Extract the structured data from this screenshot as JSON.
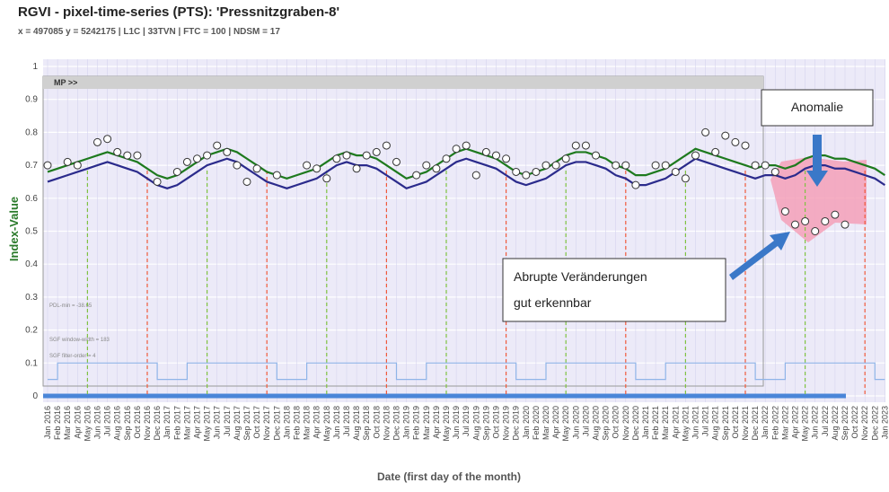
{
  "chart_data": {
    "type": "line",
    "title": "RGVI - pixel-time-series (PTS):   'Pressnitzgraben-8'",
    "subtitle": "x = 497085   y = 5242175  |  L1C  |  33TVN  |  FTC = 100  |  NDSM = 17",
    "x_label": "Date (first day of the month)",
    "y_label": "Index-Value",
    "annotations": {
      "mp": "MP >>",
      "pdl": "PDL-min = -38.65",
      "sgf_width": "SGF window-width = 183",
      "sgf_order": "SGF filter-order = 4",
      "anomaly": "Anomalie",
      "abrupt": [
        "Abrupte Veränderungen",
        "gut erkennbar"
      ]
    },
    "categories": [
      "Jan 2016",
      "Feb 2016",
      "Mar 2016",
      "Apr 2016",
      "May 2016",
      "Jun 2016",
      "Jul 2016",
      "Aug 2016",
      "Sep 2016",
      "Oct 2016",
      "Nov 2016",
      "Dec 2016",
      "Jan 2017",
      "Feb 2017",
      "Mar 2017",
      "Apr 2017",
      "May 2017",
      "Jun 2017",
      "Jul 2017",
      "Aug 2017",
      "Sep 2017",
      "Oct 2017",
      "Nov 2017",
      "Dec 2017",
      "Jan 2018",
      "Feb 2018",
      "Mar 2018",
      "Apr 2018",
      "May 2018",
      "Jun 2018",
      "Jul 2018",
      "Aug 2018",
      "Sep 2018",
      "Oct 2018",
      "Nov 2018",
      "Dec 2018",
      "Jan 2019",
      "Feb 2019",
      "Mar 2019",
      "Apr 2019",
      "May 2019",
      "Jun 2019",
      "Jul 2019",
      "Aug 2019",
      "Sep 2019",
      "Oct 2019",
      "Nov 2019",
      "Dec 2019",
      "Jan 2020",
      "Feb 2020",
      "Mar 2020",
      "Apr 2020",
      "May 2020",
      "Jun 2020",
      "Jul 2020",
      "Aug 2020",
      "Sep 2020",
      "Oct 2020",
      "Nov 2020",
      "Dec 2020",
      "Jan 2021",
      "Feb 2021",
      "Mar 2021",
      "Apr 2021",
      "May 2021",
      "Jun 2021",
      "Jul 2021",
      "Aug 2021",
      "Sep 2021",
      "Oct 2021",
      "Nov 2021",
      "Dec 2021",
      "Jan 2022",
      "Feb 2022",
      "Mar 2022",
      "Apr 2022",
      "May 2022",
      "Jun 2022",
      "Jul 2022",
      "Aug 2022",
      "Sep 2022",
      "Oct 2022",
      "Nov 2022",
      "Dec 2022",
      "Jan 2023"
    ],
    "series": [
      {
        "name": "smoothed",
        "color": "#1e7a1e",
        "values": [
          0.68,
          0.69,
          0.7,
          0.71,
          0.72,
          0.73,
          0.74,
          0.73,
          0.72,
          0.71,
          0.69,
          0.67,
          0.66,
          0.67,
          0.69,
          0.71,
          0.73,
          0.74,
          0.75,
          0.74,
          0.72,
          0.7,
          0.68,
          0.67,
          0.66,
          0.67,
          0.68,
          0.69,
          0.71,
          0.73,
          0.74,
          0.73,
          0.73,
          0.72,
          0.7,
          0.68,
          0.66,
          0.67,
          0.68,
          0.7,
          0.72,
          0.74,
          0.75,
          0.74,
          0.73,
          0.72,
          0.7,
          0.68,
          0.67,
          0.68,
          0.69,
          0.71,
          0.73,
          0.74,
          0.74,
          0.73,
          0.72,
          0.7,
          0.69,
          0.67,
          0.67,
          0.68,
          0.69,
          0.71,
          0.73,
          0.75,
          0.74,
          0.73,
          0.72,
          0.71,
          0.7,
          0.69,
          0.7,
          0.7,
          0.69,
          0.7,
          0.72,
          0.73,
          0.73,
          0.72,
          0.72,
          0.71,
          0.7,
          0.69,
          0.67
        ]
      },
      {
        "name": "lower",
        "color": "#2b2b8c",
        "values": [
          0.65,
          0.66,
          0.67,
          0.68,
          0.69,
          0.7,
          0.71,
          0.7,
          0.69,
          0.68,
          0.66,
          0.64,
          0.63,
          0.64,
          0.66,
          0.68,
          0.7,
          0.71,
          0.72,
          0.71,
          0.69,
          0.67,
          0.65,
          0.64,
          0.63,
          0.64,
          0.65,
          0.66,
          0.68,
          0.7,
          0.71,
          0.7,
          0.7,
          0.69,
          0.67,
          0.65,
          0.63,
          0.64,
          0.65,
          0.67,
          0.69,
          0.71,
          0.72,
          0.71,
          0.7,
          0.69,
          0.67,
          0.65,
          0.64,
          0.65,
          0.66,
          0.68,
          0.7,
          0.71,
          0.71,
          0.7,
          0.69,
          0.67,
          0.66,
          0.64,
          0.64,
          0.65,
          0.66,
          0.68,
          0.7,
          0.72,
          0.71,
          0.7,
          0.69,
          0.68,
          0.67,
          0.66,
          0.67,
          0.67,
          0.66,
          0.67,
          0.69,
          0.7,
          0.7,
          0.69,
          0.69,
          0.68,
          0.67,
          0.66,
          0.64
        ]
      },
      {
        "name": "observations",
        "color": "#ffffff",
        "values": [
          0.7,
          null,
          0.71,
          0.7,
          null,
          0.77,
          0.78,
          0.74,
          0.73,
          0.73,
          null,
          0.65,
          null,
          0.68,
          0.71,
          0.72,
          0.73,
          0.76,
          0.74,
          0.7,
          0.65,
          0.69,
          null,
          0.67,
          null,
          null,
          0.7,
          0.69,
          0.66,
          0.72,
          0.73,
          0.69,
          0.73,
          0.74,
          0.76,
          0.71,
          null,
          0.67,
          0.7,
          0.69,
          0.72,
          0.75,
          0.76,
          0.67,
          0.74,
          0.73,
          0.72,
          0.68,
          0.67,
          0.68,
          0.7,
          0.7,
          0.72,
          0.76,
          0.76,
          0.73,
          null,
          0.7,
          0.7,
          0.64,
          null,
          0.7,
          0.7,
          0.68,
          0.66,
          0.73,
          0.8,
          0.74,
          0.79,
          0.77,
          0.76,
          0.7,
          0.7,
          0.68,
          0.56,
          0.52,
          0.53,
          0.5,
          0.53,
          0.55,
          0.52,
          null,
          null,
          null,
          null
        ]
      },
      {
        "name": "mask",
        "color": "#8fb4e8",
        "values": [
          0.05,
          0.1,
          0.1,
          0.1,
          0.1,
          0.1,
          0.1,
          0.1,
          0.1,
          0.1,
          0.1,
          0.05,
          0.05,
          0.05,
          0.1,
          0.1,
          0.1,
          0.1,
          0.1,
          0.1,
          0.1,
          0.1,
          0.1,
          0.05,
          0.05,
          0.05,
          0.1,
          0.1,
          0.1,
          0.1,
          0.1,
          0.1,
          0.1,
          0.1,
          0.1,
          0.05,
          0.05,
          0.05,
          0.1,
          0.1,
          0.1,
          0.1,
          0.1,
          0.1,
          0.1,
          0.1,
          0.1,
          0.05,
          0.05,
          0.05,
          0.1,
          0.1,
          0.1,
          0.1,
          0.1,
          0.1,
          0.1,
          0.1,
          0.1,
          0.05,
          0.05,
          0.05,
          0.1,
          0.1,
          0.1,
          0.1,
          0.1,
          0.1,
          0.1,
          0.1,
          0.1,
          0.05,
          0.05,
          0.05,
          0.1,
          0.1,
          0.1,
          0.1,
          0.1,
          0.1,
          0.1,
          0.1,
          0.1,
          0.05,
          0.05
        ]
      }
    ],
    "vlines": [
      {
        "x": "May 2016",
        "color": "#7fc241"
      },
      {
        "x": "Nov 2016",
        "color": "#f05a3c"
      },
      {
        "x": "May 2017",
        "color": "#7fc241"
      },
      {
        "x": "Nov 2017",
        "color": "#f05a3c"
      },
      {
        "x": "May 2018",
        "color": "#7fc241"
      },
      {
        "x": "Nov 2018",
        "color": "#f05a3c"
      },
      {
        "x": "May 2019",
        "color": "#7fc241"
      },
      {
        "x": "Nov 2019",
        "color": "#f05a3c"
      },
      {
        "x": "May 2020",
        "color": "#7fc241"
      },
      {
        "x": "Nov 2020",
        "color": "#f05a3c"
      },
      {
        "x": "May 2021",
        "color": "#7fc241"
      },
      {
        "x": "Nov 2021",
        "color": "#f05a3c"
      },
      {
        "x": "May 2022",
        "color": "#7fc241"
      },
      {
        "x": "Nov 2022",
        "color": "#f05a3c"
      }
    ],
    "ylim": [
      0,
      1
    ],
    "yticks": [
      0,
      0.1,
      0.2,
      0.3,
      0.4,
      0.5,
      0.6,
      0.7,
      0.8,
      0.9,
      1
    ],
    "grid": true
  }
}
